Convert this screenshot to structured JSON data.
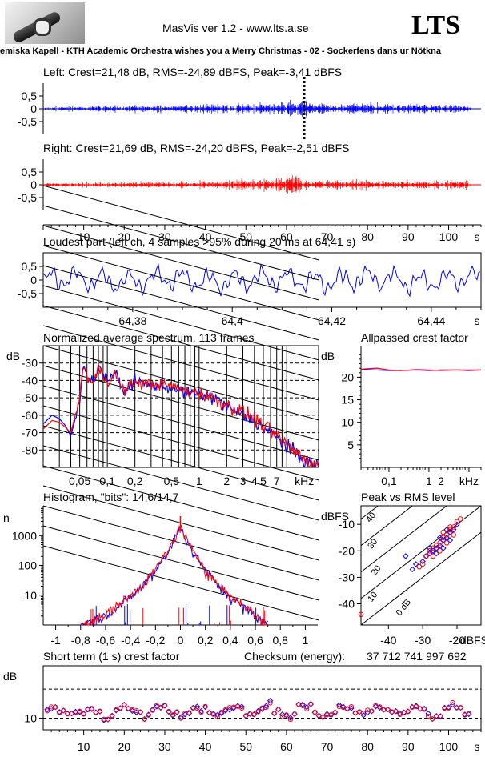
{
  "header": {
    "app_title": "MasVis ver 1.2 - www.lts.a.se",
    "logo_text": "LTS",
    "track": "emiska Kapell - KTH Academic Orchestra wishes you a Merry Christmas - 02 - Sockerfens dans ur Nötkna"
  },
  "colors": {
    "left": "#0000ff",
    "right": "#ff0000",
    "axis": "#000000"
  },
  "chart_data": [
    {
      "id": "left-waveform",
      "type": "line",
      "title": "Left: Crest=21,48 dB, RMS=-24,89 dBFS, Peak=-3,41 dBFS",
      "y_ticks": [
        "0,5",
        "0",
        "-0,5"
      ],
      "ylim": [
        -1,
        1
      ],
      "xlim": [
        0,
        108
      ],
      "marker_x": 64.41,
      "color": "blue",
      "envelope": {
        "x": [
          0,
          5,
          15,
          25,
          35,
          45,
          50,
          55,
          58,
          60,
          62,
          63,
          64,
          65,
          66,
          68,
          70,
          75,
          80,
          85,
          90,
          95,
          100,
          104,
          106,
          108
        ],
        "amp": [
          0.12,
          0.15,
          0.2,
          0.22,
          0.25,
          0.3,
          0.35,
          0.35,
          0.45,
          0.55,
          0.6,
          0.55,
          0.65,
          0.5,
          0.38,
          0.32,
          0.32,
          0.3,
          0.32,
          0.3,
          0.32,
          0.3,
          0.28,
          0.3,
          0.03,
          0.02
        ]
      }
    },
    {
      "id": "right-waveform",
      "type": "line",
      "title": "Right: Crest=21,69 dB, RMS=-24,20 dBFS, Peak=-2,51 dBFS",
      "y_ticks": [
        "0,5",
        "0",
        "-0,5"
      ],
      "ylim": [
        -1,
        1
      ],
      "xlim": [
        0,
        108
      ],
      "x_ticks": [
        "10",
        "20",
        "30",
        "40",
        "50",
        "60",
        "70",
        "80",
        "90",
        "100",
        "s"
      ],
      "color": "red",
      "envelope": {
        "x": [
          0,
          5,
          15,
          25,
          35,
          45,
          50,
          55,
          58,
          60,
          62,
          63,
          64,
          65,
          66,
          68,
          70,
          75,
          80,
          85,
          90,
          95,
          100,
          104,
          106,
          108
        ],
        "amp": [
          0.1,
          0.12,
          0.15,
          0.18,
          0.2,
          0.24,
          0.4,
          0.35,
          0.45,
          0.7,
          0.65,
          0.6,
          0.35,
          0.4,
          0.3,
          0.3,
          0.3,
          0.32,
          0.3,
          0.3,
          0.3,
          0.25,
          0.25,
          0.28,
          0.03,
          0.02
        ]
      }
    },
    {
      "id": "loudest-part",
      "type": "line",
      "title": "Loudest part (left  ch, 4 samples >95% during 20 ms at 64,41 s)",
      "y_ticks": [
        "0,5",
        "0",
        "-0,5"
      ],
      "ylim": [
        -1,
        1
      ],
      "x_ticks": [
        "64,38",
        "64,4",
        "64,42",
        "64,44",
        "s"
      ],
      "xlim": [
        64.362,
        64.45
      ],
      "color": "blue"
    },
    {
      "id": "spectrum",
      "type": "line",
      "title": "Normalized average spectrum, 113 frames",
      "ylabel": "dB",
      "y_ticks": [
        "-30",
        "-40",
        "-50",
        "-60",
        "-70",
        "-80"
      ],
      "ylim": [
        -90,
        -20
      ],
      "x_ticks": [
        "0,05",
        "0,1",
        "0,2",
        "0,5",
        "1",
        "2",
        "3",
        "4",
        "5",
        "7",
        "kHz"
      ],
      "x_scale": "log",
      "xlim_khz": [
        0.02,
        20
      ],
      "series": [
        {
          "color": "blue",
          "x": [
            0.02,
            0.025,
            0.03,
            0.035,
            0.04,
            0.05,
            0.055,
            0.06,
            0.07,
            0.08,
            0.1,
            0.12,
            0.15,
            0.2,
            0.3,
            0.5,
            0.7,
            1,
            1.5,
            2,
            3,
            4,
            5,
            7,
            10,
            15,
            20
          ],
          "y": [
            -65,
            -60,
            -62,
            -66,
            -72,
            -52,
            -30,
            -37,
            -41,
            -32,
            -40,
            -35,
            -47,
            -40,
            -43,
            -44,
            -47,
            -48,
            -50,
            -55,
            -60,
            -63,
            -67,
            -73,
            -80,
            -87,
            -90
          ]
        },
        {
          "color": "red",
          "x": [
            0.02,
            0.025,
            0.03,
            0.035,
            0.04,
            0.05,
            0.055,
            0.06,
            0.07,
            0.08,
            0.1,
            0.12,
            0.15,
            0.2,
            0.3,
            0.5,
            0.7,
            1,
            1.5,
            2,
            3,
            4,
            5,
            7,
            10,
            15,
            20
          ],
          "y": [
            -68,
            -63,
            -64,
            -67,
            -70,
            -50,
            -30,
            -38,
            -42,
            -33,
            -41,
            -36,
            -46,
            -41,
            -42,
            -43,
            -46,
            -47,
            -51,
            -54,
            -58,
            -62,
            -66,
            -72,
            -79,
            -86,
            -90
          ]
        }
      ]
    },
    {
      "id": "allpassed-crest",
      "type": "line",
      "title": "Allpassed crest factor",
      "ylabel": "dB",
      "y_ticks": [
        "20",
        "15",
        "10",
        "5"
      ],
      "ylim": [
        0,
        27
      ],
      "x_ticks": [
        "0,1",
        "1",
        "2",
        "kHz"
      ],
      "x_scale": "log",
      "xlim_khz": [
        0.02,
        20
      ],
      "series": [
        {
          "color": "blue",
          "x": [
            0.02,
            0.05,
            0.1,
            0.2,
            0.5,
            1,
            2,
            5,
            10,
            20
          ],
          "y": [
            21.7,
            21.6,
            21.5,
            21.5,
            21.6,
            21.5,
            21.6,
            21.6,
            21.5,
            21.6
          ]
        },
        {
          "color": "red",
          "x": [
            0.02,
            0.05,
            0.1,
            0.2,
            0.5,
            1,
            2,
            5,
            10,
            20
          ],
          "y": [
            21.8,
            22.0,
            21.6,
            21.5,
            21.7,
            21.6,
            21.5,
            21.6,
            21.6,
            21.6
          ]
        }
      ]
    },
    {
      "id": "histogram",
      "type": "line",
      "title": "Histogram, \"bits\": 14,6/14,7",
      "ylabel": "n",
      "y_ticks": [
        "1000",
        "100",
        "10"
      ],
      "y_scale": "log",
      "ylim": [
        1,
        10000
      ],
      "x_ticks": [
        "-1",
        "-0,8",
        "-0,6",
        "-0,4",
        "-0,2",
        "0",
        "0,2",
        "0,4",
        "0,6",
        "0,8",
        "1"
      ],
      "xlim": [
        -1.1,
        1.1
      ],
      "series": [
        {
          "color": "blue",
          "x": [
            -0.8,
            -0.6,
            -0.5,
            -0.4,
            -0.3,
            -0.2,
            -0.1,
            -0.05,
            0,
            0.05,
            0.1,
            0.2,
            0.3,
            0.4,
            0.5,
            0.6,
            0.7
          ],
          "y": [
            1,
            2,
            4,
            8,
            20,
            60,
            250,
            700,
            1800,
            700,
            250,
            60,
            20,
            8,
            4,
            2,
            1
          ]
        },
        {
          "color": "red",
          "x": [
            -0.8,
            -0.6,
            -0.5,
            -0.4,
            -0.3,
            -0.2,
            -0.1,
            -0.05,
            0,
            0.05,
            0.1,
            0.2,
            0.3,
            0.4,
            0.5,
            0.6,
            0.7
          ],
          "y": [
            1,
            2,
            5,
            9,
            22,
            65,
            260,
            720,
            1900,
            720,
            260,
            65,
            22,
            9,
            5,
            2,
            1
          ]
        }
      ]
    },
    {
      "id": "peak-vs-rms",
      "type": "scatter",
      "title": "Peak vs RMS level",
      "ylabel": "dBFS",
      "xlabel": "dBFS",
      "y_ticks": [
        "-10",
        "-20",
        "-30",
        "-40"
      ],
      "x_ticks": [
        "-40",
        "-30",
        "-20"
      ],
      "xlim": [
        -48,
        -13
      ],
      "ylim": [
        -48,
        -3
      ],
      "crest_lines": [
        "40",
        "30",
        "20",
        "10",
        "0 dB"
      ],
      "series": [
        {
          "color": "blue",
          "points": [
            [
              -33,
              -27
            ],
            [
              -32,
              -25
            ],
            [
              -30,
              -24
            ],
            [
              -29,
              -22
            ],
            [
              -28,
              -21
            ],
            [
              -27,
              -20
            ],
            [
              -26,
              -19
            ],
            [
              -25,
              -18
            ],
            [
              -24,
              -16
            ],
            [
              -23,
              -15
            ],
            [
              -22,
              -13
            ],
            [
              -21,
              -12
            ],
            [
              -20,
              -10
            ],
            [
              -28,
              -19
            ],
            [
              -26,
              -21
            ],
            [
              -24,
              -19
            ],
            [
              -22,
              -16
            ],
            [
              -25,
              -15
            ],
            [
              -23,
              -12
            ],
            [
              -35,
              -22
            ]
          ]
        },
        {
          "color": "red",
          "points": [
            [
              -31,
              -26
            ],
            [
              -30,
              -25
            ],
            [
              -29,
              -22
            ],
            [
              -28,
              -20
            ],
            [
              -27,
              -19
            ],
            [
              -26,
              -18
            ],
            [
              -25,
              -17
            ],
            [
              -24,
              -15
            ],
            [
              -23,
              -14
            ],
            [
              -22,
              -12
            ],
            [
              -21,
              -11
            ],
            [
              -20,
              -9
            ],
            [
              -19,
              -8
            ],
            [
              -27,
              -22
            ],
            [
              -25,
              -20
            ],
            [
              -23,
              -17
            ],
            [
              -21,
              -14
            ],
            [
              -24,
              -13
            ],
            [
              -22,
              -11
            ],
            [
              -48,
              -44
            ]
          ]
        }
      ]
    },
    {
      "id": "short-term-crest",
      "type": "scatter",
      "title": "Short term (1 s) crest factor",
      "checksum_label": "Checksum (energy):",
      "checksum_value": "37 712 741 997 692",
      "ylabel": "dB",
      "y_ticks": [
        "10"
      ],
      "ylim": [
        6,
        28
      ],
      "x_ticks": [
        "10",
        "20",
        "30",
        "40",
        "50",
        "60",
        "70",
        "80",
        "90",
        "100",
        "s"
      ],
      "xlim": [
        0,
        108
      ],
      "ref_lines": [
        10,
        20
      ]
    }
  ]
}
